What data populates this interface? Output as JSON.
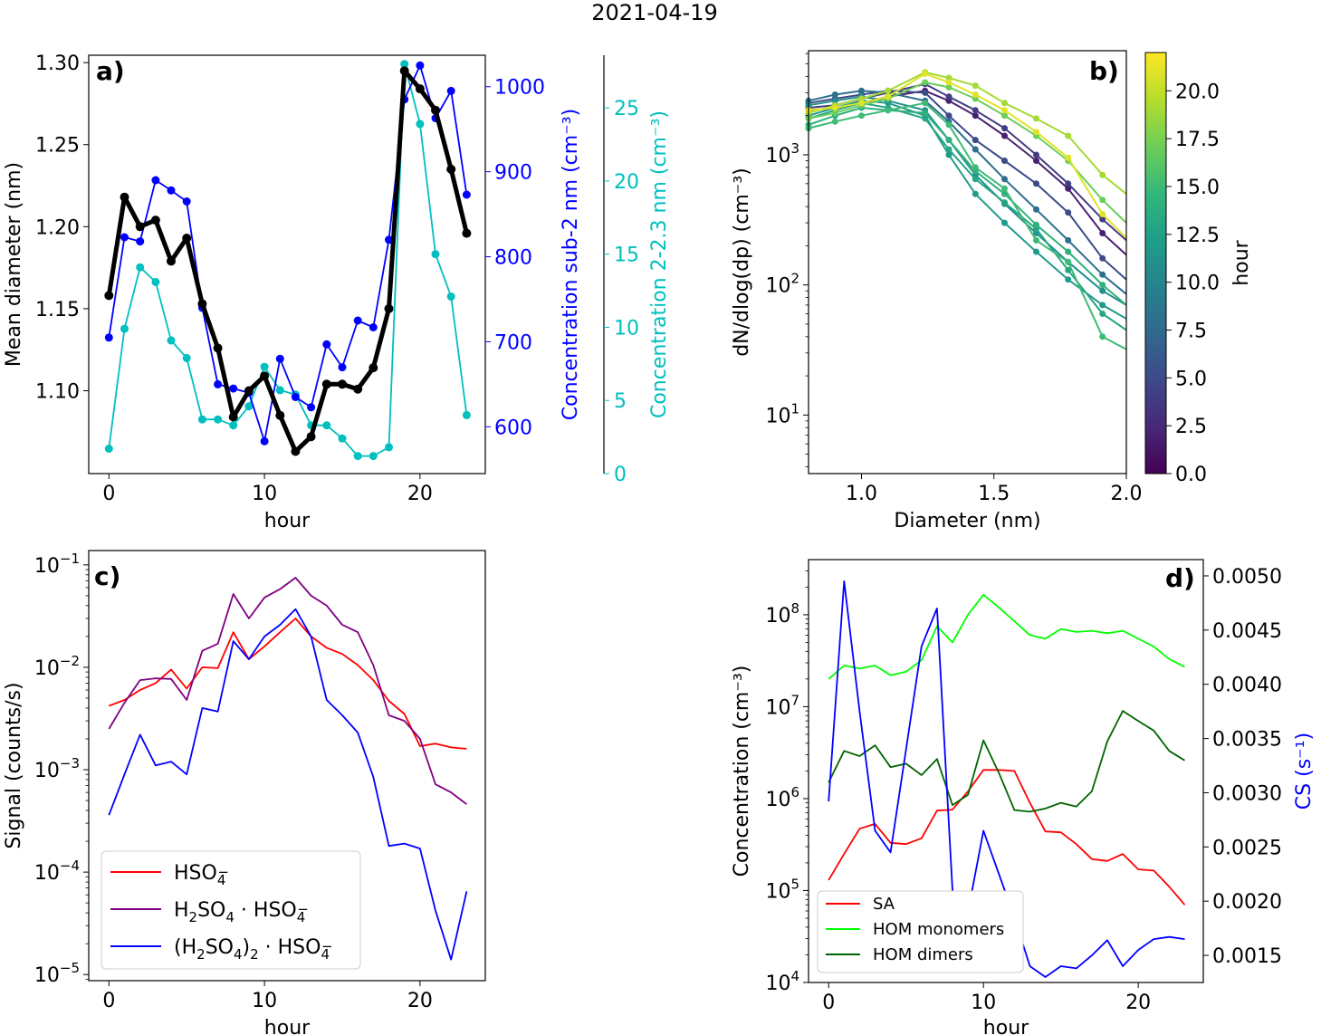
{
  "figure_title": "2021-04-19",
  "colors": {
    "black": "#000000",
    "blue": "#0000ff",
    "cyan": "#00bfbf",
    "red": "#ff0000",
    "purple": "#800080",
    "lime": "#00ff00",
    "darkgreen": "#006400"
  },
  "chart_data": [
    {
      "panel": "a)",
      "type": "line",
      "xlabel": "hour",
      "xlim": [
        -1.3,
        24.2
      ],
      "xticks": [
        0,
        10,
        20
      ],
      "axes": [
        {
          "side": "left",
          "label": "Mean diameter (nm)",
          "ylim": [
            1.0495,
            1.3045
          ],
          "ticks": [
            1.1,
            1.15,
            1.2,
            1.25,
            1.3
          ],
          "tick_labels": [
            "1.10",
            "1.15",
            "1.20",
            "1.25",
            "1.30"
          ],
          "color": "#000000"
        },
        {
          "side": "right1",
          "label": "Concentration sub-2 nm (cm⁻³)",
          "ylim": [
            545,
            1037
          ],
          "ticks": [
            600,
            700,
            800,
            900,
            1000
          ],
          "tick_labels": [
            "600",
            "700",
            "800",
            "900",
            "1000"
          ],
          "color": "#0000ff"
        },
        {
          "side": "right2",
          "label": "Concentration 2-2.3 nm (cm⁻³)",
          "ylim": [
            0,
            28.6
          ],
          "ticks": [
            0,
            5,
            10,
            15,
            20,
            25
          ],
          "tick_labels": [
            "0",
            "5",
            "10",
            "15",
            "20",
            "25"
          ],
          "color": "#00bfbf"
        }
      ],
      "series": [
        {
          "axis": 0,
          "color": "#000000",
          "width": 5,
          "x": [
            0,
            1,
            2,
            3,
            4,
            5,
            6,
            7,
            8,
            9,
            10,
            11,
            12,
            13,
            14,
            15,
            16,
            17,
            18,
            19,
            20,
            21,
            22,
            23
          ],
          "y": [
            1.158,
            1.218,
            1.2,
            1.204,
            1.179,
            1.193,
            1.153,
            1.126,
            1.084,
            1.1,
            1.109,
            1.085,
            1.063,
            1.072,
            1.104,
            1.104,
            1.101,
            1.114,
            1.15,
            1.295,
            1.284,
            1.271,
            1.235,
            1.196
          ]
        },
        {
          "axis": 1,
          "color": "#0000ff",
          "width": 1.8,
          "x": [
            0,
            1,
            2,
            3,
            4,
            5,
            6,
            7,
            8,
            9,
            10,
            11,
            12,
            13,
            14,
            15,
            16,
            17,
            18,
            19,
            20,
            21,
            22,
            23
          ],
          "y": [
            705,
            823,
            818,
            890,
            878,
            865,
            740,
            650,
            645,
            640,
            583,
            680,
            635,
            623,
            697,
            670,
            725,
            717,
            820,
            985,
            1025,
            963,
            995,
            873
          ]
        },
        {
          "axis": 2,
          "color": "#00bfbf",
          "width": 1.8,
          "x": [
            0,
            1,
            2,
            3,
            4,
            5,
            6,
            7,
            8,
            9,
            10,
            11,
            12,
            13,
            14,
            15,
            16,
            17,
            18,
            19,
            20,
            21,
            22,
            23
          ],
          "y": [
            1.7,
            9.9,
            14.1,
            13.1,
            9.1,
            7.9,
            3.7,
            3.7,
            3.3,
            4.6,
            7.3,
            5.7,
            5.4,
            3.3,
            3.3,
            2.4,
            1.2,
            1.2,
            1.8,
            28.0,
            23.9,
            15.0,
            12.1,
            4.0
          ]
        }
      ]
    },
    {
      "panel": "b)",
      "type": "line",
      "xlabel": "Diameter (nm)",
      "ylabel": "dN/dlog(dp) (cm⁻³)",
      "xlim": [
        0.8,
        2.0
      ],
      "ylim_log10": [
        0.55,
        3.8
      ],
      "xticks": [
        1.0,
        1.5,
        2.0
      ],
      "xtick_labels": [
        "1.0",
        "1.5",
        "2.0"
      ],
      "yticks_log10": [
        1,
        2,
        3
      ],
      "yscale": "log",
      "colorbar": {
        "label": "hour",
        "min": 0,
        "max": 22,
        "ticks": [
          0,
          2.5,
          5,
          7.5,
          10,
          12.5,
          15,
          17.5,
          20
        ],
        "tick_labels": [
          "0.0",
          "2.5",
          "5.0",
          "7.5",
          "10.0",
          "12.5",
          "15.0",
          "17.5",
          "20.0"
        ],
        "colormap": "viridis"
      },
      "x_points": [
        0.8,
        0.9,
        1.0,
        1.1,
        1.24,
        1.33,
        1.43,
        1.54,
        1.66,
        1.78,
        1.91,
        2.0
      ],
      "series": [
        {
          "hour": 2,
          "y": [
            2200,
            2300,
            2500,
            2800,
            3100,
            2600,
            2000,
            1400,
            900,
            550,
            250,
            170
          ]
        },
        {
          "hour": 4,
          "y": [
            2300,
            2400,
            2700,
            3000,
            3500,
            2800,
            2200,
            1600,
            1000,
            600,
            320,
            220
          ]
        },
        {
          "hour": 5,
          "y": [
            2500,
            2700,
            2900,
            3100,
            3000,
            2000,
            1300,
            900,
            600,
            360,
            160,
            110
          ]
        },
        {
          "hour": 8,
          "y": [
            2600,
            2900,
            3100,
            3000,
            2600,
            1800,
            1100,
            650,
            380,
            220,
            120,
            85
          ]
        },
        {
          "hour": 11,
          "y": [
            2400,
            2600,
            2800,
            2600,
            2200,
            1300,
            700,
            420,
            250,
            150,
            90,
            70
          ]
        },
        {
          "hour": 12,
          "y": [
            2000,
            2300,
            2600,
            2500,
            2000,
            1000,
            500,
            300,
            180,
            110,
            70,
            55
          ]
        },
        {
          "hour": 13,
          "y": [
            1900,
            2200,
            2500,
            2300,
            1900,
            1100,
            650,
            430,
            270,
            130,
            60,
            45
          ]
        },
        {
          "hour": 14,
          "y": [
            1700,
            2000,
            2300,
            2200,
            2100,
            1300,
            750,
            500,
            290,
            180,
            100,
            70
          ]
        },
        {
          "hour": 15,
          "y": [
            1600,
            1800,
            2000,
            2200,
            2500,
            1700,
            800,
            550,
            220,
            150,
            40,
            32
          ]
        },
        {
          "hour": 17,
          "y": [
            1900,
            2100,
            2400,
            2700,
            3600,
            3300,
            2700,
            2000,
            1400,
            900,
            450,
            300
          ]
        },
        {
          "hour": 19,
          "y": [
            2100,
            2400,
            2700,
            3100,
            4300,
            3900,
            3400,
            2500,
            1900,
            1400,
            700,
            500
          ]
        },
        {
          "hour": 21,
          "y": [
            2200,
            2300,
            2500,
            2800,
            4200,
            3600,
            2900,
            2200,
            1500,
            950,
            350,
            230
          ]
        }
      ]
    },
    {
      "panel": "c)",
      "type": "line",
      "xlabel": "hour",
      "ylabel": "Signal (counts/s)",
      "xlim": [
        -1.3,
        24.2
      ],
      "xticks": [
        0,
        10,
        20
      ],
      "yscale": "log",
      "ylim_log10": [
        -5.06,
        -0.86
      ],
      "yticks_log10": [
        -5,
        -4,
        -3,
        -2,
        -1
      ],
      "legend": "lower-left",
      "series": [
        {
          "name_parts": [
            "HSO",
            "4",
            "−"
          ],
          "color": "#ff0000",
          "x": [
            0,
            1,
            2,
            3,
            4,
            5,
            6,
            7,
            8,
            9,
            10,
            11,
            12,
            13,
            14,
            15,
            16,
            17,
            18,
            19,
            20,
            21,
            22,
            23
          ],
          "y": [
            0.0042,
            0.0048,
            0.006,
            0.007,
            0.0095,
            0.0062,
            0.01,
            0.0098,
            0.022,
            0.012,
            0.016,
            0.022,
            0.03,
            0.02,
            0.0155,
            0.0135,
            0.0105,
            0.0075,
            0.0047,
            0.0035,
            0.0017,
            0.0018,
            0.00165,
            0.0016
          ]
        },
        {
          "name_parts": [
            "H",
            "2",
            "SO",
            "4",
            " · HSO",
            "4",
            "−"
          ],
          "color": "#800080",
          "x": [
            0,
            1,
            2,
            3,
            4,
            5,
            6,
            7,
            8,
            9,
            10,
            11,
            12,
            13,
            14,
            15,
            16,
            17,
            18,
            19,
            20,
            21,
            22,
            23
          ],
          "y": [
            0.0025,
            0.0045,
            0.0075,
            0.0078,
            0.0077,
            0.0048,
            0.0145,
            0.017,
            0.052,
            0.03,
            0.048,
            0.058,
            0.075,
            0.05,
            0.04,
            0.026,
            0.022,
            0.0105,
            0.0034,
            0.003,
            0.002,
            0.00072,
            0.0006,
            0.00046
          ]
        },
        {
          "name_parts": [
            "(H",
            "2",
            "SO",
            "4",
            ")",
            "2",
            " · HSO",
            "4",
            "−"
          ],
          "color": "#0000ff",
          "x": [
            0,
            1,
            2,
            3,
            4,
            5,
            6,
            7,
            8,
            9,
            10,
            11,
            12,
            13,
            14,
            15,
            16,
            17,
            18,
            19,
            20,
            21,
            22,
            23
          ],
          "y": [
            0.00036,
            0.0009,
            0.0022,
            0.0011,
            0.0012,
            0.0009,
            0.004,
            0.0037,
            0.018,
            0.012,
            0.02,
            0.026,
            0.037,
            0.02,
            0.0048,
            0.0034,
            0.0023,
            0.00085,
            0.00018,
            0.00019,
            0.00017,
            4.2e-05,
            1.4e-05,
            6.5e-05
          ]
        }
      ]
    },
    {
      "panel": "d)",
      "type": "line",
      "xlabel": "hour",
      "xlim": [
        -1.3,
        24.2
      ],
      "xticks": [
        0,
        10,
        20
      ],
      "legend": "lower-left",
      "axes": [
        {
          "side": "left",
          "label": "Concentration (cm⁻³)",
          "yscale": "log",
          "ylim_log10": [
            4.0,
            8.6
          ],
          "ticks_log10": [
            4,
            5,
            6,
            7,
            8
          ]
        },
        {
          "side": "right",
          "label": "CS (s⁻¹)",
          "ylim": [
            0.00125,
            0.00515
          ],
          "ticks": [
            0.0015,
            0.002,
            0.0025,
            0.003,
            0.0035,
            0.004,
            0.0045,
            0.005
          ],
          "tick_labels": [
            "0.0015",
            "0.0020",
            "0.0025",
            "0.0030",
            "0.0035",
            "0.0040",
            "0.0045",
            "0.0050"
          ],
          "color": "#0000ff"
        }
      ],
      "series": [
        {
          "name": "SA",
          "axis": 0,
          "color": "#ff0000",
          "x": [
            0,
            1,
            2,
            3,
            4,
            5,
            6,
            7,
            8,
            9,
            10,
            11,
            12,
            13,
            14,
            15,
            16,
            17,
            18,
            19,
            20,
            21,
            22,
            23
          ],
          "y": [
            130000,
            250000,
            470000,
            530000,
            330000,
            320000,
            370000,
            740000,
            760000,
            1200000,
            2050000,
            2050000,
            2000000,
            900000,
            440000,
            430000,
            320000,
            220000,
            210000,
            250000,
            170000,
            165000,
            110000,
            70000
          ]
        },
        {
          "name": "HOM monomers",
          "axis": 0,
          "color": "#00ff00",
          "x": [
            0,
            1,
            2,
            3,
            4,
            5,
            6,
            7,
            8,
            9,
            10,
            11,
            12,
            13,
            14,
            15,
            16,
            17,
            18,
            19,
            20,
            21,
            22,
            23
          ],
          "y": [
            20000000,
            28000000,
            26000000,
            28000000,
            22000000,
            24000000,
            32000000,
            75000000,
            50000000,
            100000000,
            165000000,
            120000000,
            85000000,
            60000000,
            55000000,
            70000000,
            65000000,
            67000000,
            63000000,
            67000000,
            55000000,
            45000000,
            33000000,
            27000000
          ]
        },
        {
          "name": "HOM dimers",
          "axis": 0,
          "color": "#006400",
          "x": [
            0,
            1,
            2,
            3,
            4,
            5,
            6,
            7,
            8,
            9,
            10,
            11,
            12,
            13,
            14,
            15,
            16,
            17,
            18,
            19,
            20,
            21,
            22,
            23
          ],
          "y": [
            1500000,
            3300000,
            2900000,
            3800000,
            2200000,
            2400000,
            1800000,
            2700000,
            850000,
            1100000,
            4300000,
            1900000,
            750000,
            720000,
            780000,
            900000,
            820000,
            1200000,
            4200000,
            9000000,
            7000000,
            5500000,
            3300000,
            2600000
          ]
        },
        {
          "axis": 1,
          "color": "#0000ff",
          "x": [
            0,
            1,
            2,
            3,
            4,
            5,
            6,
            7,
            8,
            9,
            10,
            11,
            12,
            13,
            14,
            15,
            16,
            17,
            18,
            19,
            20,
            21,
            22,
            23
          ],
          "y": [
            0.00292,
            0.00495,
            0.00375,
            0.00265,
            0.00245,
            0.0034,
            0.00435,
            0.0047,
            0.0021,
            0.0019,
            0.00265,
            0.00225,
            0.00185,
            0.0014,
            0.0013,
            0.0014,
            0.00138,
            0.0015,
            0.00164,
            0.0014,
            0.00155,
            0.00165,
            0.00167,
            0.00165
          ]
        }
      ]
    }
  ]
}
